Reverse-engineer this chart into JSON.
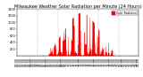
{
  "title": "Milwaukee Weather Solar Radiation per Minute (24 Hours)",
  "bar_color": "#ff0000",
  "background_color": "#ffffff",
  "grid_color": "#888888",
  "legend_label": "Solar Radiation",
  "legend_color": "#ff0000",
  "ylim": [
    0,
    1400
  ],
  "xlim": [
    0,
    1440
  ],
  "ylabel_ticks": [
    200,
    400,
    600,
    800,
    1000,
    1200,
    1400
  ],
  "num_minutes": 1440,
  "grid_lines_x": [
    240,
    480,
    720,
    960,
    1200
  ],
  "title_fontsize": 3.5,
  "tick_fontsize": 2.5,
  "legend_fontsize": 2.2,
  "sunrise": 370,
  "sunset": 1150,
  "peak": 1300,
  "figsize": [
    1.6,
    0.87
  ],
  "dpi": 100
}
